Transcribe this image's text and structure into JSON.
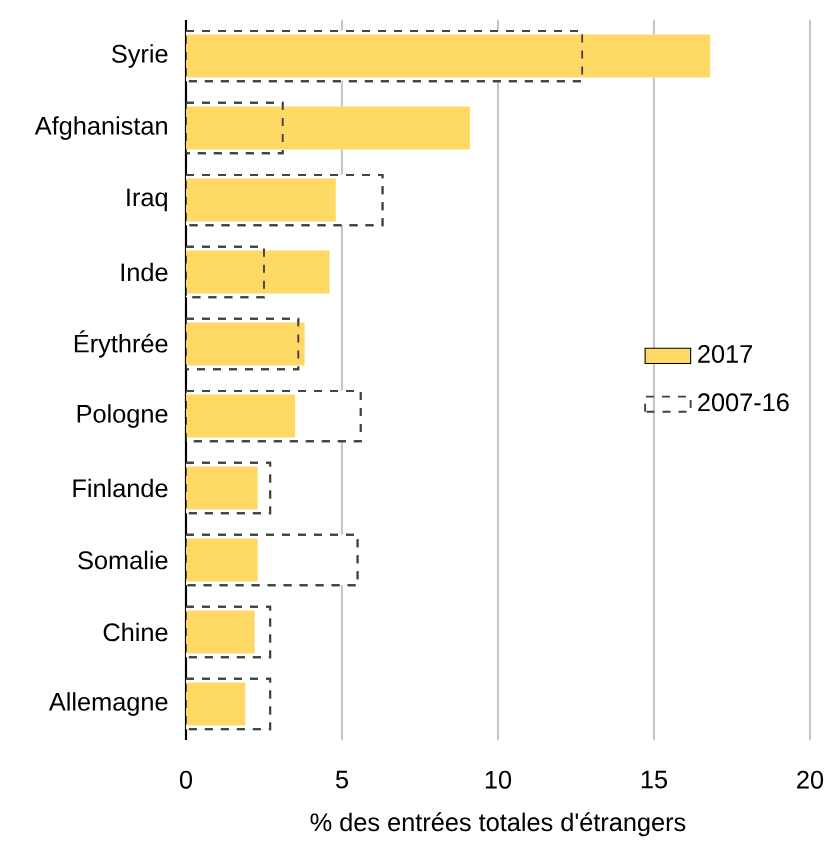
{
  "chart_data": {
    "type": "bar",
    "orientation": "horizontal",
    "xlabel": "% des entrées totales d'étrangers",
    "categories": [
      "Syrie",
      "Afghanistan",
      "Iraq",
      "Inde",
      "Érythrée",
      "Pologne",
      "Finlande",
      "Somalie",
      "Chine",
      "Allemagne"
    ],
    "series": [
      {
        "name": "2017",
        "color": "#ffd966",
        "line_style": "solid",
        "values": [
          16.8,
          9.1,
          4.8,
          4.6,
          3.8,
          3.5,
          2.3,
          2.3,
          2.2,
          1.9
        ]
      },
      {
        "name": "2007-16",
        "color": "#404040",
        "line_style": "dashed",
        "values": [
          12.7,
          3.1,
          6.3,
          2.5,
          3.6,
          5.6,
          2.7,
          5.5,
          2.7,
          2.7
        ]
      }
    ],
    "xlim": [
      0,
      20
    ],
    "xticks": [
      0,
      5,
      10,
      15,
      20
    ],
    "grid": "x",
    "legend": "right"
  }
}
